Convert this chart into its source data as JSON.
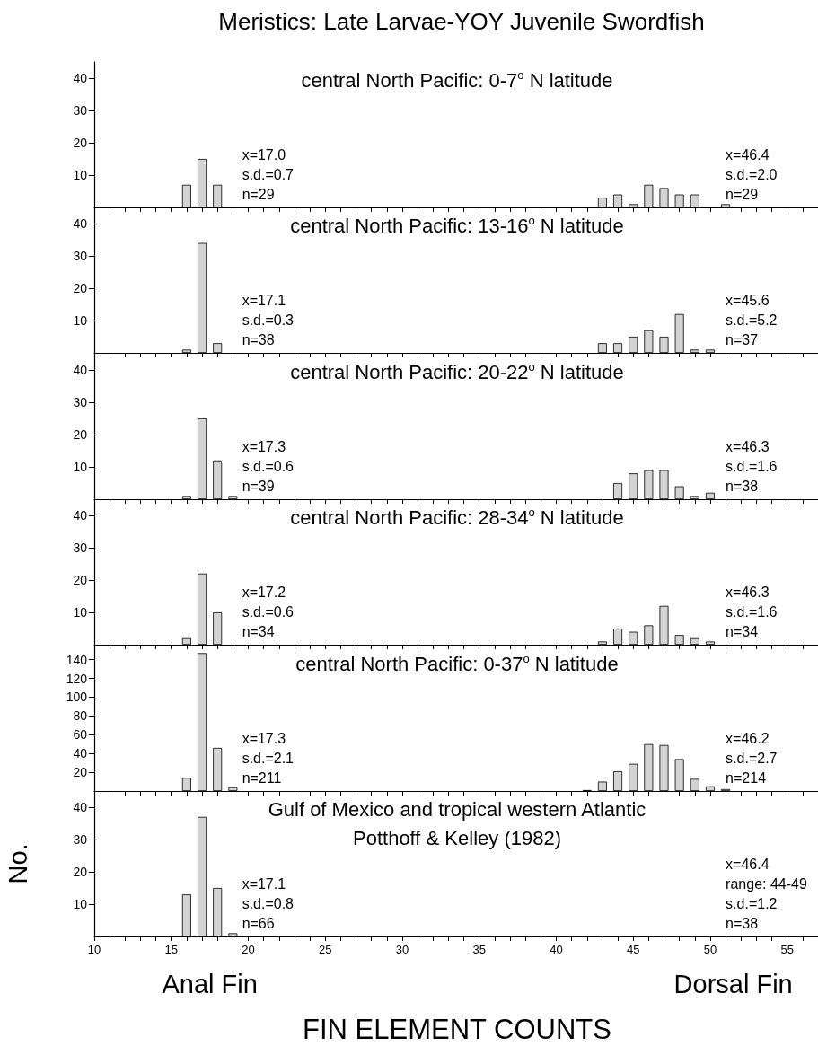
{
  "chart_data": [
    {
      "type": "bar",
      "title": "Meristics: Late Larvae-YOY Juvenile Swordfish",
      "subtitle": "central North Pacific: 0-7$^{o}$ N latitude",
      "color": "#d3d3d3",
      "x": [
        16,
        17,
        18,
        43,
        44,
        45,
        46,
        47,
        48,
        49,
        51
      ],
      "values": [
        7,
        15,
        7,
        3,
        4,
        1,
        7,
        6,
        4,
        4,
        1
      ],
      "xlim": [
        10,
        57
      ],
      "xticks": [
        10,
        {
          "value": 11,
          "label": null
        },
        {
          "value": 12,
          "label": null
        },
        {
          "value": 13,
          "label": null
        },
        {
          "value": 14,
          "label": null
        },
        15,
        {
          "value": 16,
          "label": null
        },
        {
          "value": 17,
          "label": null
        },
        {
          "value": 18,
          "label": null
        },
        {
          "value": 19,
          "label": null
        },
        20,
        {
          "value": 21,
          "label": null
        },
        {
          "value": 22,
          "label": null
        },
        {
          "value": 23,
          "label": null
        },
        {
          "value": 24,
          "label": null
        },
        25,
        {
          "value": 26,
          "label": null
        },
        {
          "value": 27,
          "label": null
        },
        {
          "value": 28,
          "label": null
        },
        {
          "value": 29,
          "label": null
        },
        30,
        {
          "value": 31,
          "label": null
        },
        {
          "value": 32,
          "label": null
        },
        {
          "value": 33,
          "label": null
        },
        {
          "value": 34,
          "label": null
        },
        35,
        {
          "value": 36,
          "label": null
        },
        {
          "value": 37,
          "label": null
        },
        {
          "value": 38,
          "label": null
        },
        {
          "value": 39,
          "label": null
        },
        40,
        {
          "value": 41,
          "label": null
        },
        {
          "value": 42,
          "label": null
        },
        {
          "value": 43,
          "label": null
        },
        {
          "value": 44,
          "label": null
        },
        45,
        {
          "value": 46,
          "label": null
        },
        {
          "value": 47,
          "label": null
        },
        {
          "value": 48,
          "label": null
        },
        {
          "value": 49,
          "label": null
        },
        50,
        {
          "value": 51,
          "label": null
        },
        {
          "value": 52,
          "label": null
        },
        {
          "value": 53,
          "label": null
        },
        {
          "value": 54,
          "label": null
        },
        55,
        {
          "value": 56,
          "label": null
        }
      ],
      "ylim": [
        0,
        45
      ],
      "yticks": [
        10,
        20,
        30,
        40
      ],
      "tick_labels": "y",
      "annotations": [
        "x=17.0\ns.d.=0.7\nn=29",
        "x=46.4\ns.d.=2.0\nn=29"
      ]
    },
    {
      "type": "bar",
      "subtitle": "central North Pacific: 13-16$^{o}$ N latitude",
      "color": "#d3d3d3",
      "x": [
        16,
        17,
        18,
        43,
        44,
        45,
        46,
        47,
        48,
        49,
        50
      ],
      "values": [
        1,
        34,
        3,
        3,
        3,
        5,
        7,
        5,
        12,
        1,
        1
      ],
      "xlim": [
        10,
        57
      ],
      "xticks": [
        10,
        {
          "value": 11,
          "label": null
        },
        {
          "value": 12,
          "label": null
        },
        {
          "value": 13,
          "label": null
        },
        {
          "value": 14,
          "label": null
        },
        15,
        {
          "value": 16,
          "label": null
        },
        {
          "value": 17,
          "label": null
        },
        {
          "value": 18,
          "label": null
        },
        {
          "value": 19,
          "label": null
        },
        20,
        {
          "value": 21,
          "label": null
        },
        {
          "value": 22,
          "label": null
        },
        {
          "value": 23,
          "label": null
        },
        {
          "value": 24,
          "label": null
        },
        25,
        {
          "value": 26,
          "label": null
        },
        {
          "value": 27,
          "label": null
        },
        {
          "value": 28,
          "label": null
        },
        {
          "value": 29,
          "label": null
        },
        30,
        {
          "value": 31,
          "label": null
        },
        {
          "value": 32,
          "label": null
        },
        {
          "value": 33,
          "label": null
        },
        {
          "value": 34,
          "label": null
        },
        35,
        {
          "value": 36,
          "label": null
        },
        {
          "value": 37,
          "label": null
        },
        {
          "value": 38,
          "label": null
        },
        {
          "value": 39,
          "label": null
        },
        40,
        {
          "value": 41,
          "label": null
        },
        {
          "value": 42,
          "label": null
        },
        {
          "value": 43,
          "label": null
        },
        {
          "value": 44,
          "label": null
        },
        45,
        {
          "value": 46,
          "label": null
        },
        {
          "value": 47,
          "label": null
        },
        {
          "value": 48,
          "label": null
        },
        {
          "value": 49,
          "label": null
        },
        50,
        {
          "value": 51,
          "label": null
        },
        {
          "value": 52,
          "label": null
        },
        {
          "value": 53,
          "label": null
        },
        {
          "value": 54,
          "label": null
        },
        55,
        {
          "value": 56,
          "label": null
        }
      ],
      "ylim": [
        0,
        45
      ],
      "yticks": [
        10,
        20,
        30,
        40
      ],
      "tick_labels": "y",
      "annotations": [
        "x=17.1\ns.d.=0.3\nn=38",
        "x=45.6\ns.d.=5.2\nn=37"
      ]
    },
    {
      "type": "bar",
      "subtitle": "central North Pacific: 20-22$^{o}$ N latitude",
      "color": "#d3d3d3",
      "x": [
        16,
        17,
        18,
        19,
        44,
        45,
        46,
        47,
        48,
        49,
        50
      ],
      "values": [
        1,
        25,
        12,
        1,
        5,
        8,
        9,
        9,
        4,
        1,
        2
      ],
      "xlim": [
        10,
        57
      ],
      "xticks": [
        10,
        {
          "value": 11,
          "label": null
        },
        {
          "value": 12,
          "label": null
        },
        {
          "value": 13,
          "label": null
        },
        {
          "value": 14,
          "label": null
        },
        15,
        {
          "value": 16,
          "label": null
        },
        {
          "value": 17,
          "label": null
        },
        {
          "value": 18,
          "label": null
        },
        {
          "value": 19,
          "label": null
        },
        20,
        {
          "value": 21,
          "label": null
        },
        {
          "value": 22,
          "label": null
        },
        {
          "value": 23,
          "label": null
        },
        {
          "value": 24,
          "label": null
        },
        25,
        {
          "value": 26,
          "label": null
        },
        {
          "value": 27,
          "label": null
        },
        {
          "value": 28,
          "label": null
        },
        {
          "value": 29,
          "label": null
        },
        30,
        {
          "value": 31,
          "label": null
        },
        {
          "value": 32,
          "label": null
        },
        {
          "value": 33,
          "label": null
        },
        {
          "value": 34,
          "label": null
        },
        35,
        {
          "value": 36,
          "label": null
        },
        {
          "value": 37,
          "label": null
        },
        {
          "value": 38,
          "label": null
        },
        {
          "value": 39,
          "label": null
        },
        40,
        {
          "value": 41,
          "label": null
        },
        {
          "value": 42,
          "label": null
        },
        {
          "value": 43,
          "label": null
        },
        {
          "value": 44,
          "label": null
        },
        45,
        {
          "value": 46,
          "label": null
        },
        {
          "value": 47,
          "label": null
        },
        {
          "value": 48,
          "label": null
        },
        {
          "value": 49,
          "label": null
        },
        50,
        {
          "value": 51,
          "label": null
        },
        {
          "value": 52,
          "label": null
        },
        {
          "value": 53,
          "label": null
        },
        {
          "value": 54,
          "label": null
        },
        55,
        {
          "value": 56,
          "label": null
        }
      ],
      "ylim": [
        0,
        45
      ],
      "yticks": [
        10,
        20,
        30,
        40
      ],
      "tick_labels": "y",
      "annotations": [
        "x=17.3\ns.d.=0.6\nn=39",
        "x=46.3\ns.d.=1.6\nn=38"
      ]
    },
    {
      "type": "bar",
      "subtitle": "central North Pacific: 28-34$^{o}$ N latitude",
      "color": "#d3d3d3",
      "x": [
        16,
        17,
        18,
        43,
        44,
        45,
        46,
        47,
        48,
        49,
        50
      ],
      "values": [
        2,
        22,
        10,
        1,
        5,
        4,
        6,
        12,
        3,
        2,
        1
      ],
      "xlim": [
        10,
        57
      ],
      "xticks": [
        10,
        {
          "value": 11,
          "label": null
        },
        {
          "value": 12,
          "label": null
        },
        {
          "value": 13,
          "label": null
        },
        {
          "value": 14,
          "label": null
        },
        15,
        {
          "value": 16,
          "label": null
        },
        {
          "value": 17,
          "label": null
        },
        {
          "value": 18,
          "label": null
        },
        {
          "value": 19,
          "label": null
        },
        20,
        {
          "value": 21,
          "label": null
        },
        {
          "value": 22,
          "label": null
        },
        {
          "value": 23,
          "label": null
        },
        {
          "value": 24,
          "label": null
        },
        25,
        {
          "value": 26,
          "label": null
        },
        {
          "value": 27,
          "label": null
        },
        {
          "value": 28,
          "label": null
        },
        {
          "value": 29,
          "label": null
        },
        30,
        {
          "value": 31,
          "label": null
        },
        {
          "value": 32,
          "label": null
        },
        {
          "value": 33,
          "label": null
        },
        {
          "value": 34,
          "label": null
        },
        35,
        {
          "value": 36,
          "label": null
        },
        {
          "value": 37,
          "label": null
        },
        {
          "value": 38,
          "label": null
        },
        {
          "value": 39,
          "label": null
        },
        40,
        {
          "value": 41,
          "label": null
        },
        {
          "value": 42,
          "label": null
        },
        {
          "value": 43,
          "label": null
        },
        {
          "value": 44,
          "label": null
        },
        45,
        {
          "value": 46,
          "label": null
        },
        {
          "value": 47,
          "label": null
        },
        {
          "value": 48,
          "label": null
        },
        {
          "value": 49,
          "label": null
        },
        50,
        {
          "value": 51,
          "label": null
        },
        {
          "value": 52,
          "label": null
        },
        {
          "value": 53,
          "label": null
        },
        {
          "value": 54,
          "label": null
        },
        55,
        {
          "value": 56,
          "label": null
        }
      ],
      "ylim": [
        0,
        45
      ],
      "yticks": [
        10,
        20,
        30,
        40
      ],
      "tick_labels": "y",
      "annotations": [
        "x=17.2\ns.d.=0.6\nn=34",
        "x=46.3\ns.d.=1.6\nn=34"
      ]
    },
    {
      "type": "bar",
      "subtitle": "central North Pacific: 0-37$^{o}$ N latitude",
      "color": "#d3d3d3",
      "x": [
        16,
        17,
        18,
        19,
        42,
        43,
        44,
        45,
        46,
        47,
        48,
        49,
        50,
        51
      ],
      "values": [
        14,
        147,
        46,
        4,
        1,
        10,
        21,
        29,
        50,
        49,
        34,
        13,
        5,
        2
      ],
      "xlim": [
        10,
        57
      ],
      "xticks": [
        10,
        {
          "value": 11,
          "label": null
        },
        {
          "value": 12,
          "label": null
        },
        {
          "value": 13,
          "label": null
        },
        {
          "value": 14,
          "label": null
        },
        15,
        {
          "value": 16,
          "label": null
        },
        {
          "value": 17,
          "label": null
        },
        {
          "value": 18,
          "label": null
        },
        {
          "value": 19,
          "label": null
        },
        20,
        {
          "value": 21,
          "label": null
        },
        {
          "value": 22,
          "label": null
        },
        {
          "value": 23,
          "label": null
        },
        {
          "value": 24,
          "label": null
        },
        25,
        {
          "value": 26,
          "label": null
        },
        {
          "value": 27,
          "label": null
        },
        {
          "value": 28,
          "label": null
        },
        {
          "value": 29,
          "label": null
        },
        30,
        {
          "value": 31,
          "label": null
        },
        {
          "value": 32,
          "label": null
        },
        {
          "value": 33,
          "label": null
        },
        {
          "value": 34,
          "label": null
        },
        35,
        {
          "value": 36,
          "label": null
        },
        {
          "value": 37,
          "label": null
        },
        {
          "value": 38,
          "label": null
        },
        {
          "value": 39,
          "label": null
        },
        40,
        {
          "value": 41,
          "label": null
        },
        {
          "value": 42,
          "label": null
        },
        {
          "value": 43,
          "label": null
        },
        {
          "value": 44,
          "label": null
        },
        45,
        {
          "value": 46,
          "label": null
        },
        {
          "value": 47,
          "label": null
        },
        {
          "value": 48,
          "label": null
        },
        {
          "value": 49,
          "label": null
        },
        50,
        {
          "value": 51,
          "label": null
        },
        {
          "value": 52,
          "label": null
        },
        {
          "value": 53,
          "label": null
        },
        {
          "value": 54,
          "label": null
        },
        55,
        {
          "value": 56,
          "label": null
        }
      ],
      "ylim": [
        0,
        155
      ],
      "yticks": [
        20,
        40,
        60,
        80,
        100,
        120,
        140
      ],
      "tick_labels": "y",
      "annotations": [
        "x=17.3\ns.d.=2.1\nn=211",
        "x=46.2\ns.d.=2.7\nn=214"
      ]
    },
    {
      "type": "bar",
      "subtitle": "Gulf of Mexico and tropical western Atlantic\nPotthoff & Kelley (1982)",
      "xlabel": "FIN ELEMENT COUNTS",
      "ylabel": "No.",
      "color": "#d3d3d3",
      "x": [
        16,
        17,
        18,
        19
      ],
      "values": [
        13,
        37,
        15,
        1
      ],
      "xlim": [
        10,
        57
      ],
      "xticks": [
        10,
        {
          "value": 11,
          "label": null
        },
        {
          "value": 12,
          "label": null
        },
        {
          "value": 13,
          "label": null
        },
        {
          "value": 14,
          "label": null
        },
        15,
        {
          "value": 16,
          "label": null
        },
        {
          "value": 17,
          "label": null
        },
        {
          "value": 18,
          "label": null
        },
        {
          "value": 19,
          "label": null
        },
        20,
        {
          "value": 21,
          "label": null
        },
        {
          "value": 22,
          "label": null
        },
        {
          "value": 23,
          "label": null
        },
        {
          "value": 24,
          "label": null
        },
        25,
        {
          "value": 26,
          "label": null
        },
        {
          "value": 27,
          "label": null
        },
        {
          "value": 28,
          "label": null
        },
        {
          "value": 29,
          "label": null
        },
        30,
        {
          "value": 31,
          "label": null
        },
        {
          "value": 32,
          "label": null
        },
        {
          "value": 33,
          "label": null
        },
        {
          "value": 34,
          "label": null
        },
        35,
        {
          "value": 36,
          "label": null
        },
        {
          "value": 37,
          "label": null
        },
        {
          "value": 38,
          "label": null
        },
        {
          "value": 39,
          "label": null
        },
        40,
        {
          "value": 41,
          "label": null
        },
        {
          "value": 42,
          "label": null
        },
        {
          "value": 43,
          "label": null
        },
        {
          "value": 44,
          "label": null
        },
        45,
        {
          "value": 46,
          "label": null
        },
        {
          "value": 47,
          "label": null
        },
        {
          "value": 48,
          "label": null
        },
        {
          "value": 49,
          "label": null
        },
        50,
        {
          "value": 51,
          "label": null
        },
        {
          "value": 52,
          "label": null
        },
        {
          "value": 53,
          "label": null
        },
        {
          "value": 54,
          "label": null
        },
        55,
        {
          "value": 56,
          "label": null
        }
      ],
      "ylim": [
        0,
        45
      ],
      "yticks": [
        10,
        20,
        30,
        40
      ],
      "annotations": [
        "x=17.1\ns.d.=0.8\nn=66",
        "x=46.4\nrange: 44-49\ns.d.=1.2\nn=38",
        "Anal Fin",
        "Dorsal Fin"
      ]
    }
  ]
}
